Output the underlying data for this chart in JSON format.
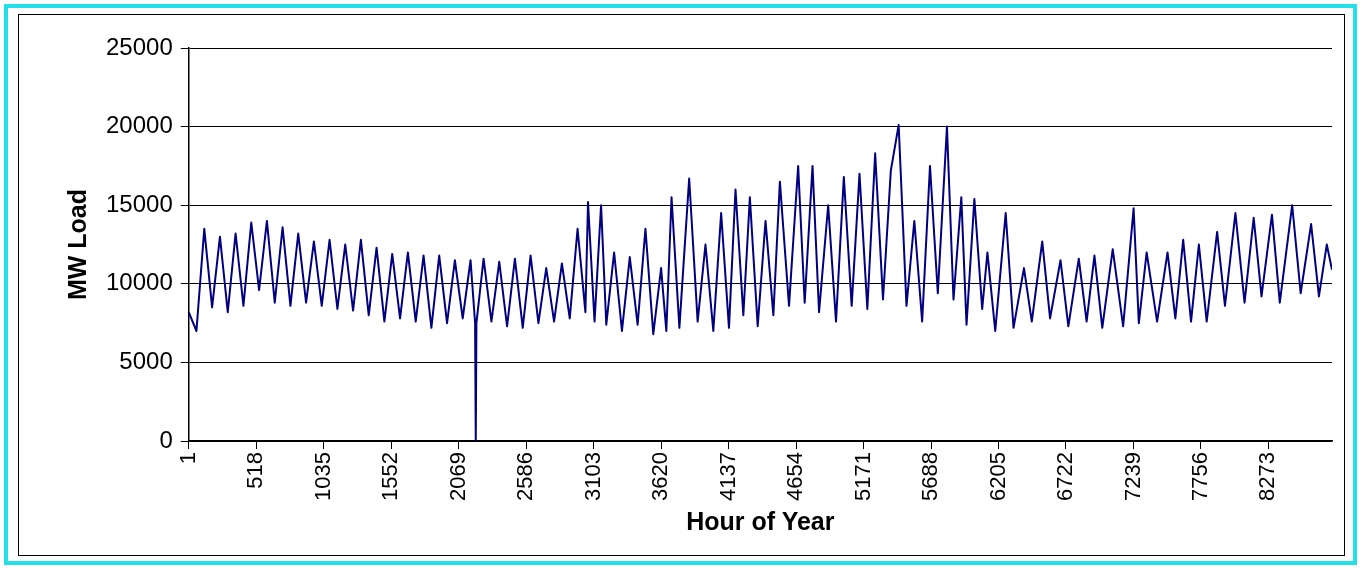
{
  "chart_data": {
    "type": "line",
    "xlabel": "Hour of Year",
    "ylabel": "MW Load",
    "x": [
      1,
      60,
      120,
      180,
      240,
      300,
      360,
      420,
      480,
      540,
      600,
      660,
      720,
      780,
      840,
      900,
      960,
      1020,
      1080,
      1140,
      1200,
      1260,
      1320,
      1380,
      1440,
      1500,
      1560,
      1620,
      1680,
      1740,
      1800,
      1860,
      1920,
      1980,
      2040,
      2100,
      2160,
      2195,
      2200,
      2205,
      2260,
      2320,
      2380,
      2440,
      2500,
      2560,
      2620,
      2680,
      2740,
      2800,
      2860,
      2920,
      2980,
      3040,
      3060,
      3110,
      3160,
      3200,
      3260,
      3320,
      3380,
      3440,
      3500,
      3560,
      3620,
      3660,
      3700,
      3760,
      3835,
      3900,
      3960,
      4020,
      4080,
      4140,
      4190,
      4250,
      4300,
      4360,
      4420,
      4480,
      4530,
      4600,
      4670,
      4720,
      4780,
      4830,
      4900,
      4960,
      5020,
      5080,
      5140,
      5200,
      5260,
      5320,
      5380,
      5440,
      5500,
      5560,
      5620,
      5680,
      5740,
      5810,
      5860,
      5920,
      5960,
      6020,
      6080,
      6120,
      6180,
      6260,
      6320,
      6400,
      6460,
      6540,
      6600,
      6680,
      6740,
      6820,
      6880,
      6940,
      7000,
      7080,
      7160,
      7240,
      7280,
      7340,
      7420,
      7500,
      7560,
      7620,
      7680,
      7740,
      7800,
      7880,
      7940,
      8020,
      8090,
      8160,
      8220,
      8300,
      8360,
      8455,
      8520,
      8600,
      8660,
      8720,
      8760
    ],
    "series": [
      {
        "color": "#000080",
        "values": [
          8200,
          7000,
          13500,
          8500,
          13000,
          8200,
          13200,
          8600,
          13900,
          9600,
          14000,
          8800,
          13600,
          8600,
          13200,
          8800,
          12700,
          8600,
          12800,
          8400,
          12500,
          8300,
          12800,
          8000,
          12300,
          7600,
          11900,
          7800,
          12000,
          7600,
          11800,
          7200,
          11800,
          7500,
          11500,
          7800,
          11500,
          7500,
          0,
          7500,
          11600,
          7600,
          11400,
          7300,
          11600,
          7200,
          11800,
          7500,
          11000,
          7600,
          11300,
          7800,
          13500,
          8200,
          15200,
          7600,
          15000,
          7400,
          12000,
          7000,
          11700,
          7400,
          13500,
          6800,
          11000,
          7000,
          15500,
          7200,
          16700,
          7600,
          12500,
          7000,
          14500,
          7200,
          16000,
          8000,
          15500,
          7300,
          14000,
          8000,
          16500,
          8600,
          17500,
          8800,
          17500,
          8200,
          15000,
          7600,
          16800,
          8600,
          17000,
          8400,
          18300,
          9000,
          17200,
          20100,
          8600,
          14000,
          7600,
          17500,
          9400,
          20000,
          9000,
          15500,
          7400,
          15400,
          8400,
          12000,
          7000,
          14500,
          7200,
          11000,
          7600,
          12700,
          7800,
          11500,
          7300,
          11600,
          7600,
          11800,
          7200,
          12200,
          7300,
          14800,
          7500,
          12000,
          7600,
          12000,
          7800,
          12800,
          7600,
          12500,
          7600,
          13300,
          8600,
          14500,
          8800,
          14200,
          9200,
          14400,
          8800,
          15000,
          9400,
          13800,
          9200,
          12500,
          10900
        ]
      }
    ],
    "xlim": [
      1,
      8760
    ],
    "xticks": [
      1,
      518,
      1035,
      1552,
      2069,
      2586,
      3103,
      3620,
      4137,
      4654,
      5171,
      5688,
      6205,
      6722,
      7239,
      7756,
      8273
    ],
    "ylim": [
      0,
      25000
    ],
    "yticks": [
      0,
      5000,
      10000,
      15000,
      20000,
      25000
    ],
    "grid": "y",
    "legend": false,
    "marker": "none",
    "line_style": "solid"
  }
}
